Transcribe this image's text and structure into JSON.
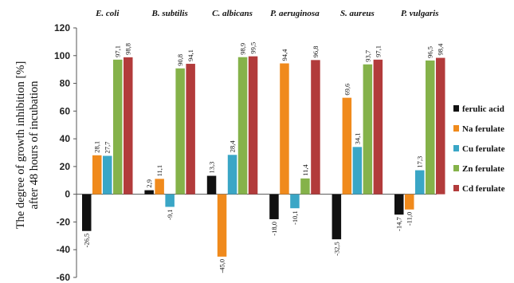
{
  "chart_data": {
    "type": "bar",
    "title": "",
    "ylabel": "The degree of growth inhibition [%] after 48 hours of incubation",
    "ylabel_lines": [
      "The degree of growth inhibition [%]",
      "after 48 hours of incubation"
    ],
    "ylim": [
      -60,
      120
    ],
    "yticks": [
      -60,
      -40,
      -20,
      0,
      20,
      40,
      60,
      80,
      100,
      120
    ],
    "grid": false,
    "legend_position": "right",
    "categories": [
      "E. coli",
      "B. subtilis",
      "C. albicans",
      "P. aeruginosa",
      "S. aureus",
      "P. vulgaris"
    ],
    "series": [
      {
        "name": "ferulic acid",
        "color": "#111111",
        "values": [
          -26.5,
          2.9,
          13.3,
          -18.0,
          -32.5,
          -14.7
        ],
        "labels": [
          "-26,5",
          "2,9",
          "13,3",
          "-18,0",
          "-32,5",
          "-14,7"
        ]
      },
      {
        "name": "Na ferulate",
        "color": "#f08a1c",
        "values": [
          28.1,
          11.1,
          -45.0,
          94.4,
          69.6,
          -11.0
        ],
        "labels": [
          "28,1",
          "11,1",
          "-45,0",
          "94,4",
          "69,6",
          "-11,0"
        ]
      },
      {
        "name": "Cu ferulate",
        "color": "#3aa6c6",
        "values": [
          27.7,
          -9.1,
          28.4,
          -10.1,
          34.1,
          17.3
        ],
        "labels": [
          "27,7",
          "-9,1",
          "28,4",
          "-10,1",
          "34,1",
          "17,3"
        ]
      },
      {
        "name": "Zn ferulate",
        "color": "#85b24a",
        "values": [
          97.1,
          90.8,
          98.9,
          11.4,
          93.7,
          96.5
        ],
        "labels": [
          "97,1",
          "90,8",
          "98,9",
          "11,4",
          "93,7",
          "96,5"
        ]
      },
      {
        "name": "Cd ferulate",
        "color": "#b23b3b",
        "values": [
          98.8,
          94.1,
          99.5,
          96.8,
          97.1,
          98.4
        ],
        "labels": [
          "98,8",
          "94,1",
          "99,5",
          "96,8",
          "97,1",
          "98,4"
        ]
      }
    ]
  }
}
